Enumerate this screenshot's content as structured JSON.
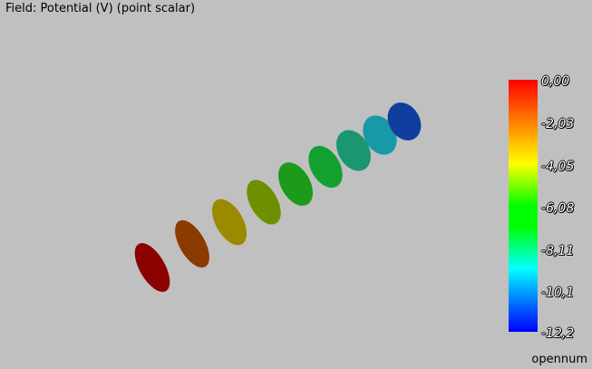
{
  "field_title": "Field: Potential (V) (point scalar)",
  "colorbar": {
    "ticks": [
      "0,00",
      "-2,03",
      "-4,05",
      "-6,08",
      "-8,11",
      "-10,1",
      "-12,2"
    ],
    "colors_top_to_bottom": [
      "#ff0000",
      "#ff8000",
      "#ffff00",
      "#00ff00",
      "#00ffff",
      "#0000ff"
    ]
  },
  "brand": "opennum",
  "discs": [
    {
      "color": "#8b0000"
    },
    {
      "color": "#8b3a00"
    },
    {
      "color": "#9a8a00"
    },
    {
      "color": "#6e8f00"
    },
    {
      "color": "#1b9a1b"
    },
    {
      "color": "#13a030"
    },
    {
      "color": "#1a9670"
    },
    {
      "color": "#1899a8"
    },
    {
      "color": "#0f3e9e"
    }
  ]
}
